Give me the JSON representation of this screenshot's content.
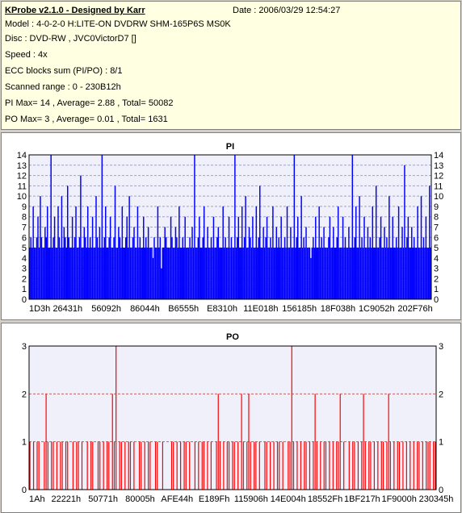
{
  "info": {
    "title": "KProbe v2.1.0 - Designed by Karr",
    "date": "Date : 2006/03/29 12:54:27",
    "model": "Model : 4-0-2-0 H:LITE-ON DVDRW SHM-165P6S MS0K",
    "disc": "Disc : DVD-RW , JVC0VictorD7 []",
    "speed": "Speed : 4x",
    "ecc": "ECC blocks sum (PI/PO) : 8/1",
    "range": "Scanned range : 0 - 230B12h",
    "pi_summary": "PI Max= 14 , Average= 2.88 , Total= 50082",
    "po_summary": "PO Max= 3 , Average= 0.01 , Total= 1631"
  },
  "colors": {
    "pi_bar": "#0000ff",
    "po_bar": "#ff0000",
    "plot_bg": "#f0f0fa",
    "pi_title": "#000080",
    "po_title": "#000080",
    "grid": "#a0a0c8",
    "po_grid": "#c06060"
  },
  "chart_data": [
    {
      "type": "bar",
      "title": "PI",
      "ylim": [
        0,
        14
      ],
      "yticks": [
        0,
        1,
        2,
        3,
        4,
        5,
        6,
        7,
        8,
        9,
        10,
        11,
        12,
        13,
        14
      ],
      "xticks": [
        "1D3h",
        "26431h",
        "56092h",
        "86044h",
        "B6555h",
        "E8310h",
        "11E018h",
        "156185h",
        "18F038h",
        "1C9052h",
        "202F76h"
      ],
      "grid": true,
      "baseline_level": 5,
      "max": 14,
      "average": 2.88,
      "total": 50082,
      "values": [
        5,
        6,
        5,
        9,
        5,
        5,
        6,
        8,
        5,
        10,
        6,
        5,
        5,
        7,
        6,
        9,
        5,
        5,
        14,
        5,
        6,
        8,
        5,
        5,
        9,
        6,
        5,
        10,
        5,
        7,
        6,
        5,
        11,
        6,
        5,
        5,
        8,
        5,
        6,
        9,
        5,
        5,
        6,
        12,
        5,
        5,
        7,
        6,
        5,
        9,
        5,
        6,
        5,
        8,
        5,
        5,
        10,
        6,
        5,
        7,
        5,
        14,
        5,
        6,
        9,
        5,
        5,
        6,
        8,
        5,
        5,
        6,
        11,
        5,
        5,
        7,
        6,
        5,
        9,
        5,
        5,
        6,
        8,
        5,
        10,
        5,
        5,
        6,
        7,
        5,
        5,
        9,
        5,
        6,
        5,
        5,
        8,
        5,
        6,
        5,
        7,
        5,
        5,
        5,
        4,
        6,
        5,
        5,
        9,
        5,
        6,
        3,
        5,
        5,
        7,
        6,
        5,
        5,
        5,
        8,
        6,
        5,
        5,
        7,
        6,
        5,
        9,
        5,
        5,
        6,
        5,
        8,
        5,
        5,
        5,
        6,
        5,
        7,
        5,
        14,
        5,
        5,
        6,
        8,
        5,
        5,
        6,
        9,
        5,
        5,
        7,
        5,
        5,
        6,
        5,
        8,
        5,
        5,
        6,
        7,
        5,
        5,
        5,
        9,
        5,
        6,
        5,
        5,
        8,
        5,
        6,
        5,
        5,
        14,
        5,
        6,
        8,
        5,
        5,
        9,
        5,
        6,
        10,
        5,
        5,
        7,
        6,
        5,
        8,
        5,
        5,
        9,
        5,
        6,
        11,
        5,
        5,
        7,
        5,
        6,
        8,
        5,
        5,
        6,
        5,
        9,
        5,
        5,
        7,
        5,
        6,
        5,
        8,
        5,
        5,
        6,
        5,
        9,
        5,
        5,
        7,
        5,
        5,
        14,
        5,
        6,
        8,
        5,
        5,
        10,
        5,
        6,
        5,
        7,
        5,
        5,
        5,
        4,
        5,
        6,
        5,
        8,
        5,
        5,
        9,
        5,
        6,
        5,
        7,
        5,
        5,
        5,
        6,
        8,
        5,
        5,
        7,
        5,
        5,
        6,
        9,
        5,
        5,
        5,
        8,
        5,
        6,
        5,
        5,
        7,
        5,
        5,
        14,
        5,
        6,
        9,
        5,
        5,
        10,
        5,
        6,
        5,
        8,
        5,
        5,
        7,
        5,
        6,
        5,
        9,
        5,
        5,
        11,
        5,
        5,
        6,
        8,
        5,
        5,
        7,
        5,
        6,
        5,
        10,
        5,
        5,
        8,
        5,
        5,
        6,
        5,
        9,
        5,
        5,
        7,
        5,
        13,
        5,
        6,
        8,
        5,
        5,
        7,
        5,
        6,
        5,
        5,
        9,
        5,
        5,
        10,
        5,
        6,
        5,
        8,
        5,
        5,
        11,
        5
      ]
    },
    {
      "type": "bar",
      "title": "PO",
      "ylim": [
        0,
        3
      ],
      "yticks": [
        0,
        1,
        2,
        3
      ],
      "xticks": [
        "1Ah",
        "22221h",
        "50771h",
        "80005h",
        "AFE44h",
        "E189Fh",
        "115906h",
        "14E004h",
        "18552Fh",
        "1BF217h",
        "1F9000h",
        "230345h"
      ],
      "grid": true,
      "max": 3,
      "average": 0.01,
      "total": 1631,
      "values": [
        1,
        0,
        1,
        0,
        1,
        1,
        0,
        0,
        1,
        2,
        1,
        0,
        1,
        1,
        0,
        1,
        0,
        1,
        1,
        0,
        1,
        1,
        0,
        0,
        1,
        0,
        1,
        1,
        0,
        1,
        0,
        0,
        1,
        0,
        1,
        1,
        0,
        0,
        1,
        1,
        0,
        1,
        0,
        1,
        1,
        0,
        2,
        1,
        3,
        0,
        1,
        1,
        0,
        1,
        0,
        1,
        1,
        0,
        1,
        0,
        0,
        1,
        1,
        0,
        1,
        0,
        1,
        1,
        0,
        0,
        1,
        1,
        0,
        0,
        1,
        0,
        0,
        0,
        0,
        1,
        1,
        0,
        1,
        0,
        1,
        0,
        1,
        1,
        0,
        1,
        0,
        0,
        1,
        0,
        1,
        0,
        1,
        1,
        0,
        1,
        0,
        1,
        0,
        0,
        1,
        2,
        1,
        0,
        1,
        0,
        1,
        1,
        0,
        1,
        1,
        0,
        1,
        0,
        2,
        1,
        0,
        1,
        2,
        1,
        0,
        1,
        1,
        0,
        1,
        0,
        0,
        1,
        1,
        0,
        1,
        0,
        1,
        0,
        1,
        1,
        0,
        1,
        0,
        0,
        1,
        1,
        3,
        1,
        0,
        1,
        0,
        1,
        0,
        1,
        1,
        0,
        1,
        0,
        1,
        2,
        1,
        0,
        1,
        0,
        1,
        1,
        0,
        1,
        0,
        1,
        0,
        1,
        1,
        2,
        0,
        1,
        0,
        0,
        1,
        0,
        1,
        1,
        0,
        1,
        0,
        1,
        2,
        1,
        0,
        1,
        1,
        0,
        1,
        0,
        1,
        0,
        1,
        1,
        0,
        1,
        2,
        1,
        0,
        1,
        0,
        1,
        1,
        0,
        1,
        0,
        1,
        0,
        1,
        0,
        1,
        0,
        1,
        1,
        0,
        1,
        0,
        1,
        1,
        1,
        0,
        1,
        1
      ]
    }
  ]
}
